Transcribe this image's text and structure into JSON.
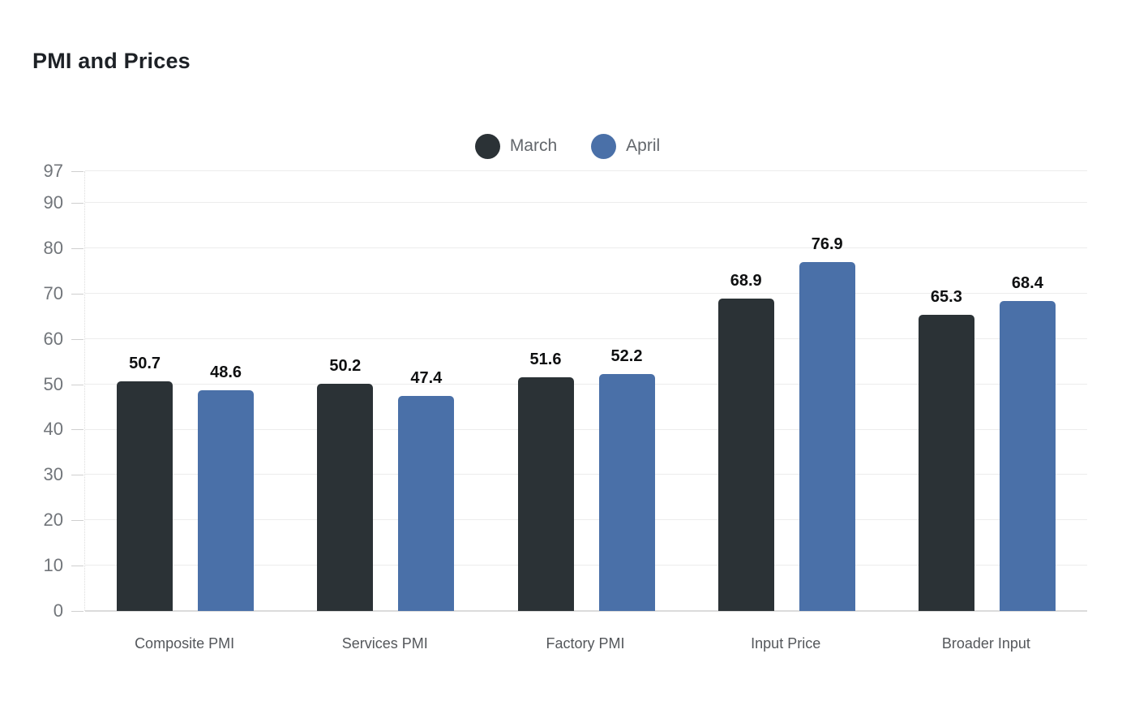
{
  "title": "PMI and Prices",
  "legend": {
    "items": [
      {
        "label": "March",
        "color": "#2b3236"
      },
      {
        "label": "April",
        "color": "#4a70a8"
      }
    ]
  },
  "chart_data": {
    "type": "bar",
    "title": "PMI and Prices",
    "categories": [
      "Composite PMI",
      "Services PMI",
      "Factory PMI",
      "Input Price",
      "Broader Input"
    ],
    "series": [
      {
        "name": "March",
        "color": "#2b3236",
        "values": [
          50.7,
          50.2,
          51.6,
          68.9,
          65.3
        ]
      },
      {
        "name": "April",
        "color": "#4a70a8",
        "values": [
          48.6,
          47.4,
          52.2,
          76.9,
          68.4
        ]
      }
    ],
    "xlabel": "",
    "ylabel": "",
    "ylim": [
      0,
      97
    ],
    "y_ticks": [
      0,
      10,
      20,
      30,
      40,
      50,
      60,
      70,
      80,
      90,
      97
    ],
    "grid": true,
    "legend_position": "top-center",
    "value_labels": true,
    "background": "#ffffff"
  },
  "colors": {
    "title_text": "#1d2126",
    "value_label_text": "#0f1011",
    "axis_tick_text": "#71757a",
    "category_text": "#54575b",
    "legend_text": "#63676c",
    "gridline": "#ececec",
    "baseline": "#dbdbdb"
  }
}
